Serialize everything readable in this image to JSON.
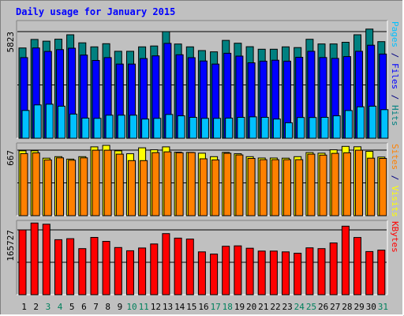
{
  "chart_data": {
    "type": "bar",
    "title": "Daily usage for January 2015",
    "days": [
      1,
      2,
      3,
      4,
      5,
      6,
      7,
      8,
      9,
      10,
      11,
      12,
      13,
      14,
      15,
      16,
      17,
      18,
      19,
      20,
      21,
      22,
      23,
      24,
      25,
      26,
      27,
      28,
      29,
      30,
      31
    ],
    "weekend_days": [
      3,
      4,
      10,
      11,
      17,
      18,
      24,
      25,
      31
    ],
    "panels": [
      {
        "id": "hits-panel",
        "axis_max_label": "5823",
        "ymax": 5823,
        "labels": [
          {
            "text": "Pages",
            "color": "#00C0FF"
          },
          {
            "text": " / ",
            "color": "#000080"
          },
          {
            "text": "Files",
            "color": "#0000FF"
          },
          {
            "text": " / ",
            "color": "#000080"
          },
          {
            "text": "Hits",
            "color": "#008080"
          }
        ],
        "series": [
          {
            "name": "Hits",
            "color": "#008080",
            "values": [
              4930,
              5395,
              5300,
              5409,
              5650,
              5212,
              4990,
              5163,
              4750,
              4750,
              4990,
              5040,
              5823,
              5145,
              4990,
              4789,
              4720,
              5343,
              5191,
              4997,
              4860,
              4860,
              4990,
              4950,
              5405,
              5150,
              5150,
              5240,
              5651,
              5963,
              5277
            ]
          },
          {
            "name": "Files",
            "color": "#0000FF",
            "values": [
              4405,
              4930,
              4740,
              4840,
              4919,
              4540,
              4250,
              4405,
              4050,
              4050,
              4350,
              4500,
              5180,
              4560,
              4400,
              4220,
              4050,
              4640,
              4488,
              4120,
              4210,
              4260,
              4210,
              4420,
              4750,
              4410,
              4360,
              4460,
              4750,
              5080,
              4599
            ]
          },
          {
            "name": "Pages",
            "color": "#00C0FF",
            "values": [
              1518,
              1820,
              1860,
              1750,
              1320,
              1100,
              1085,
              1258,
              1260,
              1260,
              1050,
              1085,
              1300,
              1225,
              1145,
              1085,
              1085,
              1100,
              1145,
              1170,
              1145,
              1050,
              845,
              1135,
              1135,
              1145,
              1225,
              1516,
              1715,
              1750,
              1560
            ]
          }
        ]
      },
      {
        "id": "visits-panel",
        "axis_max_label": "667",
        "ymax": 667,
        "labels": [
          {
            "text": "Sites",
            "color": "#FF8000"
          },
          {
            "text": " / ",
            "color": "#000080"
          },
          {
            "text": "Visits",
            "color": "#FFFF00"
          }
        ],
        "series": [
          {
            "name": "Visits",
            "color": "#FFFF00",
            "values": [
              660,
              660,
              585,
              600,
              575,
              600,
              700,
              715,
              660,
              630,
              690,
              670,
              700,
              645,
              644,
              636,
              600,
              644,
              630,
              600,
              587,
              587,
              585,
              600,
              642,
              636,
              670,
              705,
              701,
              655,
              596
            ]
          },
          {
            "name": "Sites",
            "color": "#FF8000",
            "values": [
              632,
              639,
              567,
              588,
              564,
              588,
              666,
              666,
              626,
              560,
              560,
              641,
              649,
              640,
              642,
              579,
              567,
              635,
              618,
              583,
              570,
              570,
              570,
              570,
              626,
              616,
              634,
              640,
              666,
              585,
              583
            ]
          }
        ]
      },
      {
        "id": "kbytes-panel",
        "axis_max_label": "165727",
        "ymax": 165727,
        "labels": [
          {
            "text": "KBytes",
            "color": "#FF0000"
          }
        ],
        "series": [
          {
            "name": "KBytes",
            "color": "#FF0000",
            "values": [
              165727,
              183333,
              180227,
              140727,
              143327,
              117727,
              146527,
              136427,
              120727,
              112327,
              119527,
              129727,
              156127,
              144627,
              142327,
              109527,
              103827,
              123927,
              124927,
              118827,
              111527,
              111527,
              109527,
              106127,
              119827,
              117727,
              132327,
              175327,
              146327,
              110427,
              114027
            ]
          }
        ]
      }
    ]
  },
  "colors": {
    "background": "#C0C0C0",
    "title": "#0000FF",
    "weekday": "#000000",
    "weekend": "#00805C"
  }
}
